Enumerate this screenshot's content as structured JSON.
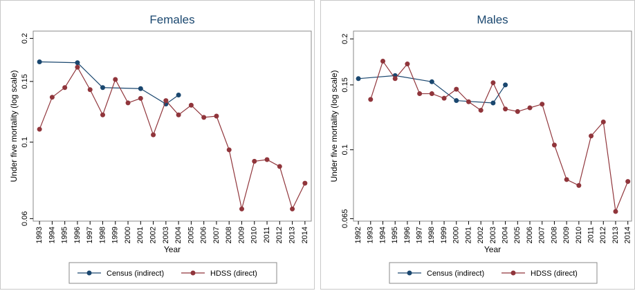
{
  "chart_data": [
    {
      "type": "line",
      "title": "Females",
      "x_label": "Year",
      "y_label": "Under five mortality (log scale)",
      "log_y": true,
      "xlim": [
        1992.5,
        2014.5
      ],
      "xticks": [
        1993,
        1994,
        1995,
        1996,
        1997,
        1998,
        1999,
        2000,
        2001,
        2002,
        2003,
        2004,
        2005,
        2006,
        2007,
        2008,
        2009,
        2010,
        2011,
        2012,
        2013,
        2014
      ],
      "ylim": [
        0.059,
        0.21
      ],
      "yticks": [
        0.06,
        0.1,
        0.15,
        0.2
      ],
      "series": [
        {
          "name": "Census (indirect)",
          "color": "#1a476f",
          "x": [
            1993,
            1996,
            1998,
            2001,
            2003,
            2004
          ],
          "values": [
            0.171,
            0.17,
            0.144,
            0.143,
            0.129,
            0.137
          ]
        },
        {
          "name": "HDSS (direct)",
          "color": "#90353b",
          "x": [
            1993,
            1994,
            1995,
            1996,
            1997,
            1998,
            1999,
            2000,
            2001,
            2002,
            2003,
            2004,
            2005,
            2006,
            2007,
            2008,
            2009,
            2010,
            2011,
            2012,
            2013,
            2014
          ],
          "values": [
            0.109,
            0.135,
            0.144,
            0.165,
            0.142,
            0.12,
            0.152,
            0.13,
            0.134,
            0.105,
            0.132,
            0.12,
            0.128,
            0.118,
            0.119,
            0.095,
            0.064,
            0.088,
            0.089,
            0.085,
            0.064,
            0.076
          ]
        }
      ]
    },
    {
      "type": "line",
      "title": "Males",
      "x_label": "Year",
      "y_label": "Under five mortality (log scale)",
      "log_y": true,
      "xlim": [
        1991.6,
        2014.3
      ],
      "xticks": [
        1992,
        1993,
        1994,
        1995,
        1996,
        1997,
        1998,
        1999,
        2000,
        2001,
        2002,
        2003,
        2004,
        2005,
        2006,
        2007,
        2008,
        2009,
        2010,
        2011,
        2012,
        2013,
        2014
      ],
      "ylim": [
        0.064,
        0.21
      ],
      "yticks": [
        0.065,
        0.1,
        0.15,
        0.2
      ],
      "series": [
        {
          "name": "Census (indirect)",
          "color": "#1a476f",
          "x": [
            1992,
            1995,
            1998,
            2000,
            2003,
            2004
          ],
          "values": [
            0.156,
            0.159,
            0.153,
            0.136,
            0.134,
            0.15
          ]
        },
        {
          "name": "HDSS (direct)",
          "color": "#90353b",
          "x": [
            1993,
            1994,
            1995,
            1996,
            1997,
            1998,
            1999,
            2000,
            2001,
            2002,
            2003,
            2004,
            2005,
            2006,
            2007,
            2008,
            2009,
            2010,
            2011,
            2012,
            2013,
            2014
          ],
          "values": [
            0.137,
            0.174,
            0.156,
            0.171,
            0.142,
            0.142,
            0.138,
            0.146,
            0.135,
            0.128,
            0.152,
            0.129,
            0.127,
            0.13,
            0.133,
            0.103,
            0.083,
            0.08,
            0.109,
            0.119,
            0.068,
            0.082
          ]
        }
      ]
    }
  ]
}
